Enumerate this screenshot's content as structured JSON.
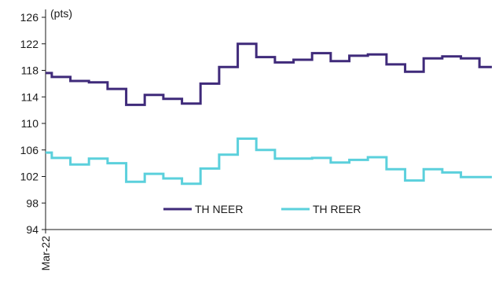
{
  "chart_data": {
    "type": "line",
    "title": "",
    "unit_label": "(pts)",
    "xlabel": "",
    "ylabel": "",
    "x_tick_labels": [
      "Mar-22"
    ],
    "ylim": [
      94,
      126
    ],
    "y_ticks": [
      94,
      98,
      102,
      106,
      110,
      114,
      118,
      122,
      126
    ],
    "grid": false,
    "legend_position": "bottom-center",
    "interpolation": "step",
    "series": [
      {
        "name": "TH NEER",
        "color": "#3f2a7a",
        "values": [
          117.6,
          117.0,
          117.0,
          117.0,
          116.4,
          116.4,
          116.4,
          116.2,
          116.2,
          116.2,
          115.2,
          115.2,
          115.2,
          112.8,
          112.8,
          112.8,
          114.3,
          114.3,
          114.3,
          113.7,
          113.7,
          113.7,
          113.0,
          113.0,
          113.0,
          116.0,
          116.0,
          116.0,
          118.5,
          118.5,
          118.5,
          122.0,
          122.0,
          122.0,
          120.0,
          120.0,
          120.0,
          119.2,
          119.2,
          119.2,
          119.6,
          119.6,
          119.6,
          120.6,
          120.6,
          120.6,
          119.4,
          119.4,
          119.4,
          120.2,
          120.2,
          120.2,
          120.4,
          120.4,
          120.4,
          118.9,
          118.9,
          118.9,
          117.8,
          117.8,
          117.8,
          119.8,
          119.8,
          119.8,
          120.1,
          120.1,
          120.1,
          119.8,
          119.8,
          119.8,
          118.5,
          118.5,
          118.5
        ]
      },
      {
        "name": "TH REER",
        "color": "#5bd0dc",
        "values": [
          105.6,
          104.8,
          104.8,
          104.8,
          103.8,
          103.8,
          103.8,
          104.7,
          104.7,
          104.7,
          104.0,
          104.0,
          104.0,
          101.2,
          101.2,
          101.2,
          102.4,
          102.4,
          102.4,
          101.7,
          101.7,
          101.7,
          100.9,
          100.9,
          100.9,
          103.2,
          103.2,
          103.2,
          105.3,
          105.3,
          105.3,
          107.7,
          107.7,
          107.7,
          106.0,
          106.0,
          106.0,
          104.7,
          104.7,
          104.7,
          104.7,
          104.7,
          104.7,
          104.8,
          104.8,
          104.8,
          104.1,
          104.1,
          104.1,
          104.5,
          104.5,
          104.5,
          104.9,
          104.9,
          104.9,
          103.1,
          103.1,
          103.1,
          101.4,
          101.4,
          101.4,
          103.1,
          103.1,
          103.1,
          102.6,
          102.6,
          102.6,
          101.9,
          101.9,
          101.9,
          101.9,
          101.9,
          101.9
        ]
      }
    ]
  }
}
